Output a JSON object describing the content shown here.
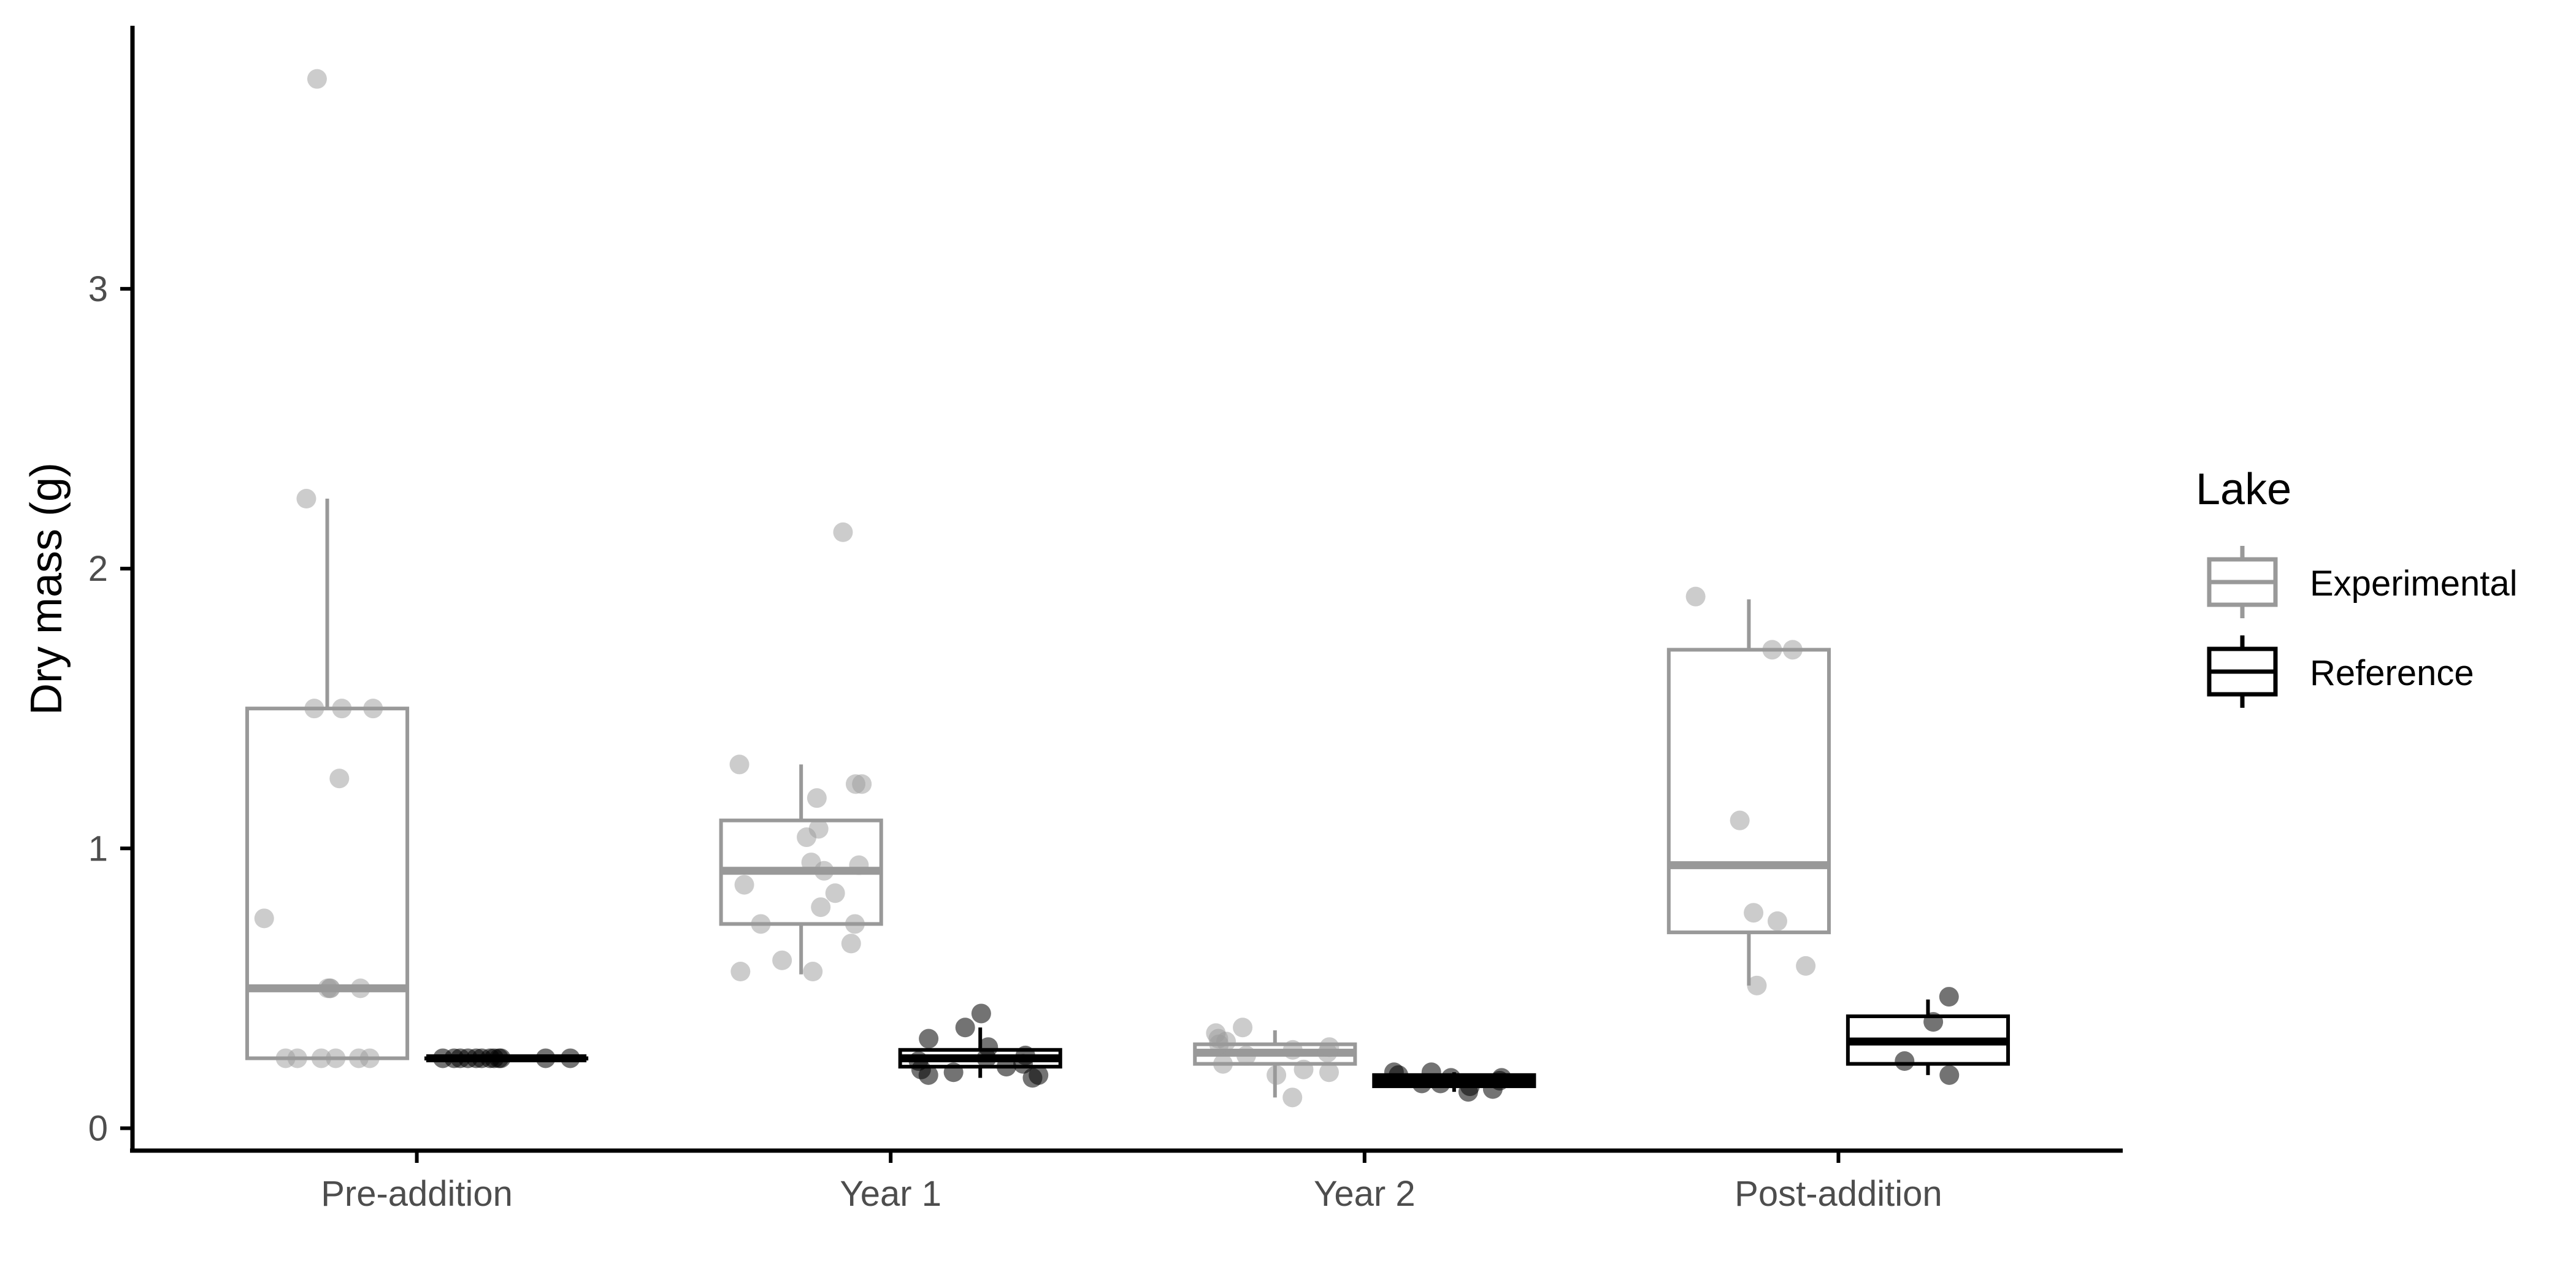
{
  "chart_data": {
    "type": "boxplot",
    "ylabel": "Dry mass (g)",
    "xlabel": "",
    "categories": [
      "Pre-addition",
      "Year 1",
      "Year 2",
      "Post-addition"
    ],
    "ylim": [
      -0.08,
      3.94
    ],
    "yticks": [
      0,
      1,
      2,
      3
    ],
    "grid": false,
    "legend": {
      "title": "Lake",
      "position": "right",
      "entries": [
        "Experimental",
        "Reference"
      ]
    },
    "colors": {
      "Experimental": "#999999",
      "Reference": "#000000"
    },
    "series": [
      {
        "name": "Experimental",
        "boxes": [
          {
            "lower": 0.25,
            "q1": 0.25,
            "median": 0.5,
            "q3": 1.5,
            "upper": 2.25
          },
          {
            "lower": 0.55,
            "q1": 0.73,
            "median": 0.92,
            "q3": 1.1,
            "upper": 1.3
          },
          {
            "lower": 0.11,
            "q1": 0.23,
            "median": 0.27,
            "q3": 0.3,
            "upper": 0.35
          },
          {
            "lower": 0.51,
            "q1": 0.7,
            "median": 0.94,
            "q3": 1.71,
            "upper": 1.89
          }
        ],
        "points": [
          [
            0.25,
            0.25,
            0.25,
            0.25,
            0.25,
            0.25,
            0.5,
            0.5,
            0.5,
            0.5,
            0.75,
            1.25,
            1.5,
            1.5,
            1.5,
            2.25,
            3.75
          ],
          [
            0.56,
            0.56,
            0.6,
            0.66,
            0.73,
            0.73,
            0.79,
            0.84,
            0.87,
            0.92,
            0.94,
            0.95,
            1.04,
            1.07,
            1.18,
            1.23,
            1.23,
            1.3,
            2.13
          ],
          [
            0.11,
            0.19,
            0.2,
            0.21,
            0.23,
            0.26,
            0.27,
            0.28,
            0.29,
            0.3,
            0.31,
            0.32,
            0.34,
            0.36
          ],
          [
            0.51,
            0.58,
            0.74,
            0.77,
            1.1,
            1.71,
            1.71,
            1.9
          ]
        ]
      },
      {
        "name": "Reference",
        "boxes": [
          {
            "lower": 0.25,
            "q1": 0.25,
            "median": 0.25,
            "q3": 0.25,
            "upper": 0.25
          },
          {
            "lower": 0.18,
            "q1": 0.22,
            "median": 0.25,
            "q3": 0.28,
            "upper": 0.36
          },
          {
            "lower": 0.13,
            "q1": 0.15,
            "median": 0.17,
            "q3": 0.19,
            "upper": 0.2
          },
          {
            "lower": 0.19,
            "q1": 0.23,
            "median": 0.31,
            "q3": 0.4,
            "upper": 0.46
          }
        ],
        "points": [
          [
            0.25,
            0.25,
            0.25,
            0.25,
            0.25,
            0.25,
            0.25,
            0.25,
            0.25,
            0.25,
            0.25,
            0.25
          ],
          [
            0.18,
            0.19,
            0.19,
            0.2,
            0.21,
            0.22,
            0.23,
            0.24,
            0.25,
            0.26,
            0.29,
            0.32,
            0.36,
            0.41
          ],
          [
            0.13,
            0.14,
            0.15,
            0.16,
            0.16,
            0.17,
            0.18,
            0.18,
            0.19,
            0.2,
            0.2
          ],
          [
            0.19,
            0.24,
            0.38,
            0.47
          ]
        ]
      }
    ]
  }
}
